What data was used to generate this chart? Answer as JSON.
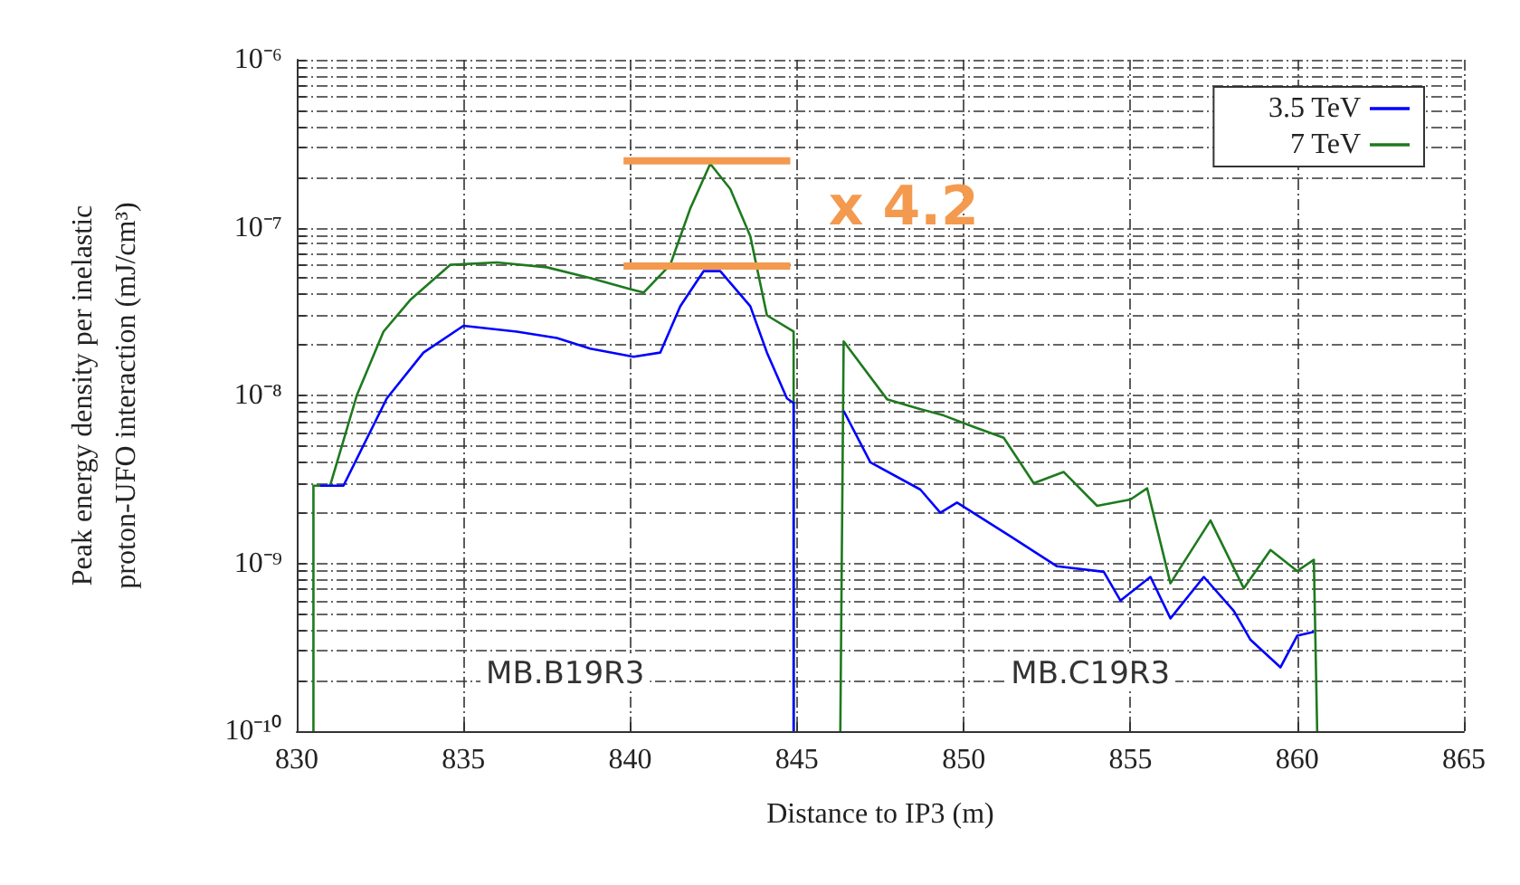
{
  "chart_data": {
    "type": "line",
    "xlabel": "Distance to IP3 (m)",
    "ylabel": "Peak energy density per inelastic\nproton-UFO interaction (mJ/cm³)",
    "xlim": [
      830,
      865
    ],
    "xticks": [
      830,
      835,
      840,
      845,
      850,
      855,
      860,
      865
    ],
    "ylim": [
      1e-10,
      1e-06
    ],
    "log": "y",
    "yticks": [
      {
        "value": 1e-10,
        "label": "10⁻¹⁰"
      },
      {
        "value": 2e-10,
        "label": null
      },
      {
        "value": 3e-10,
        "label": null
      },
      {
        "value": 4e-10,
        "label": null
      },
      {
        "value": 5e-10,
        "label": null
      },
      {
        "value": 6e-10,
        "label": null
      },
      {
        "value": 7e-10,
        "label": null
      },
      {
        "value": 8e-10,
        "label": null
      },
      {
        "value": 9e-10,
        "label": null
      },
      {
        "value": 1e-09,
        "label": "10⁻⁹"
      },
      {
        "value": 2e-09,
        "label": null
      },
      {
        "value": 3e-09,
        "label": null
      },
      {
        "value": 4e-09,
        "label": null
      },
      {
        "value": 5e-09,
        "label": null
      },
      {
        "value": 6e-09,
        "label": null
      },
      {
        "value": 7e-09,
        "label": null
      },
      {
        "value": 8e-09,
        "label": null
      },
      {
        "value": 9e-09,
        "label": null
      },
      {
        "value": 1e-08,
        "label": "10⁻⁸"
      },
      {
        "value": 2e-08,
        "label": null
      },
      {
        "value": 3e-08,
        "label": null
      },
      {
        "value": 4e-08,
        "label": null
      },
      {
        "value": 5e-08,
        "label": null
      },
      {
        "value": 6e-08,
        "label": null
      },
      {
        "value": 7e-08,
        "label": null
      },
      {
        "value": 8e-08,
        "label": null
      },
      {
        "value": 9e-08,
        "label": null
      },
      {
        "value": 1e-07,
        "label": "10⁻⁷"
      },
      {
        "value": 2e-07,
        "label": null
      },
      {
        "value": 3e-07,
        "label": null
      },
      {
        "value": 4e-07,
        "label": null
      },
      {
        "value": 5e-07,
        "label": null
      },
      {
        "value": 6e-07,
        "label": null
      },
      {
        "value": 7e-07,
        "label": null
      },
      {
        "value": 8e-07,
        "label": null
      },
      {
        "value": 9e-07,
        "label": null
      },
      {
        "value": 1e-06,
        "label": "10⁻⁶"
      }
    ],
    "grid": true,
    "legend": "top right",
    "marker": "none",
    "series": [
      {
        "name": "3.5 TeV",
        "color": "#0000ff",
        "x": [
          830.7,
          831.4,
          832.7,
          833.8,
          835.0,
          836.6,
          837.8,
          838.8,
          840.1,
          840.9,
          841.5,
          842.2,
          842.7,
          843.6,
          844.1,
          844.7,
          844.9,
          844.9,
          845.6,
          846.4,
          847.2,
          848.7,
          849.3,
          849.8,
          851.4,
          852.8,
          854.2,
          854.7,
          855.6,
          856.2,
          857.2,
          858.1,
          858.6,
          859.5,
          860.0,
          860.5
        ],
        "values": [
          2.9e-09,
          2.9e-09,
          9.6e-09,
          1.8e-08,
          2.6e-08,
          2.4e-08,
          2.2e-08,
          1.9e-08,
          1.7e-08,
          1.8e-08,
          3.4e-08,
          5.5e-08,
          5.5e-08,
          3.4e-08,
          1.8e-08,
          9.6e-09,
          9e-09,
          1e-10,
          null,
          8.1e-09,
          4e-09,
          2.75e-09,
          2e-09,
          2.3e-09,
          1.45e-09,
          9.6e-10,
          8.9e-10,
          6e-10,
          8.3e-10,
          4.7e-10,
          8.3e-10,
          5.2e-10,
          3.5e-10,
          2.4e-10,
          3.7e-10,
          3.9e-10
        ]
      },
      {
        "name": "7 TeV",
        "color": "#1e7a1e",
        "x": [
          830.5,
          830.5,
          831.0,
          831.8,
          832.6,
          833.4,
          834.6,
          836.0,
          837.5,
          838.8,
          840.0,
          840.4,
          841.2,
          841.8,
          842.4,
          843.0,
          843.6,
          844.1,
          844.9,
          844.9,
          845.6,
          846.3,
          846.4,
          847.7,
          848.5,
          849.4,
          850.3,
          851.2,
          852.1,
          853.0,
          854.0,
          855.0,
          855.5,
          856.2,
          857.4,
          858.4,
          859.2,
          860.0,
          860.5,
          860.6
        ],
        "values": [
          1e-10,
          2.9e-09,
          2.9e-09,
          1e-08,
          2.4e-08,
          3.7e-08,
          6e-08,
          6.2e-08,
          5.8e-08,
          5e-08,
          4.3e-08,
          4.1e-08,
          6e-08,
          1.3e-07,
          2.4e-07,
          1.7e-07,
          8.9e-08,
          3e-08,
          2.4e-08,
          1e-10,
          null,
          1e-10,
          2.1e-08,
          9.5e-09,
          8.5e-09,
          7.6e-09,
          6.5e-09,
          5.6e-09,
          3e-09,
          3.5e-09,
          2.2e-09,
          2.4e-09,
          2.8e-09,
          7.6e-10,
          1.8e-09,
          7.1e-10,
          1.2e-09,
          9e-10,
          1.05e-09,
          1e-10
        ]
      },
      {
        "color": "#f39a4f",
        "x": [
          839.8,
          844.8
        ],
        "values": [
          2.5e-07,
          2.5e-07
        ]
      },
      {
        "color": "#f39a4f",
        "x": [
          839.8,
          844.8
        ],
        "values": [
          5.9e-08,
          5.9e-08
        ]
      }
    ],
    "annotations": [
      "x 4.2",
      "MB.B19R3",
      "MB.C19R3"
    ]
  }
}
